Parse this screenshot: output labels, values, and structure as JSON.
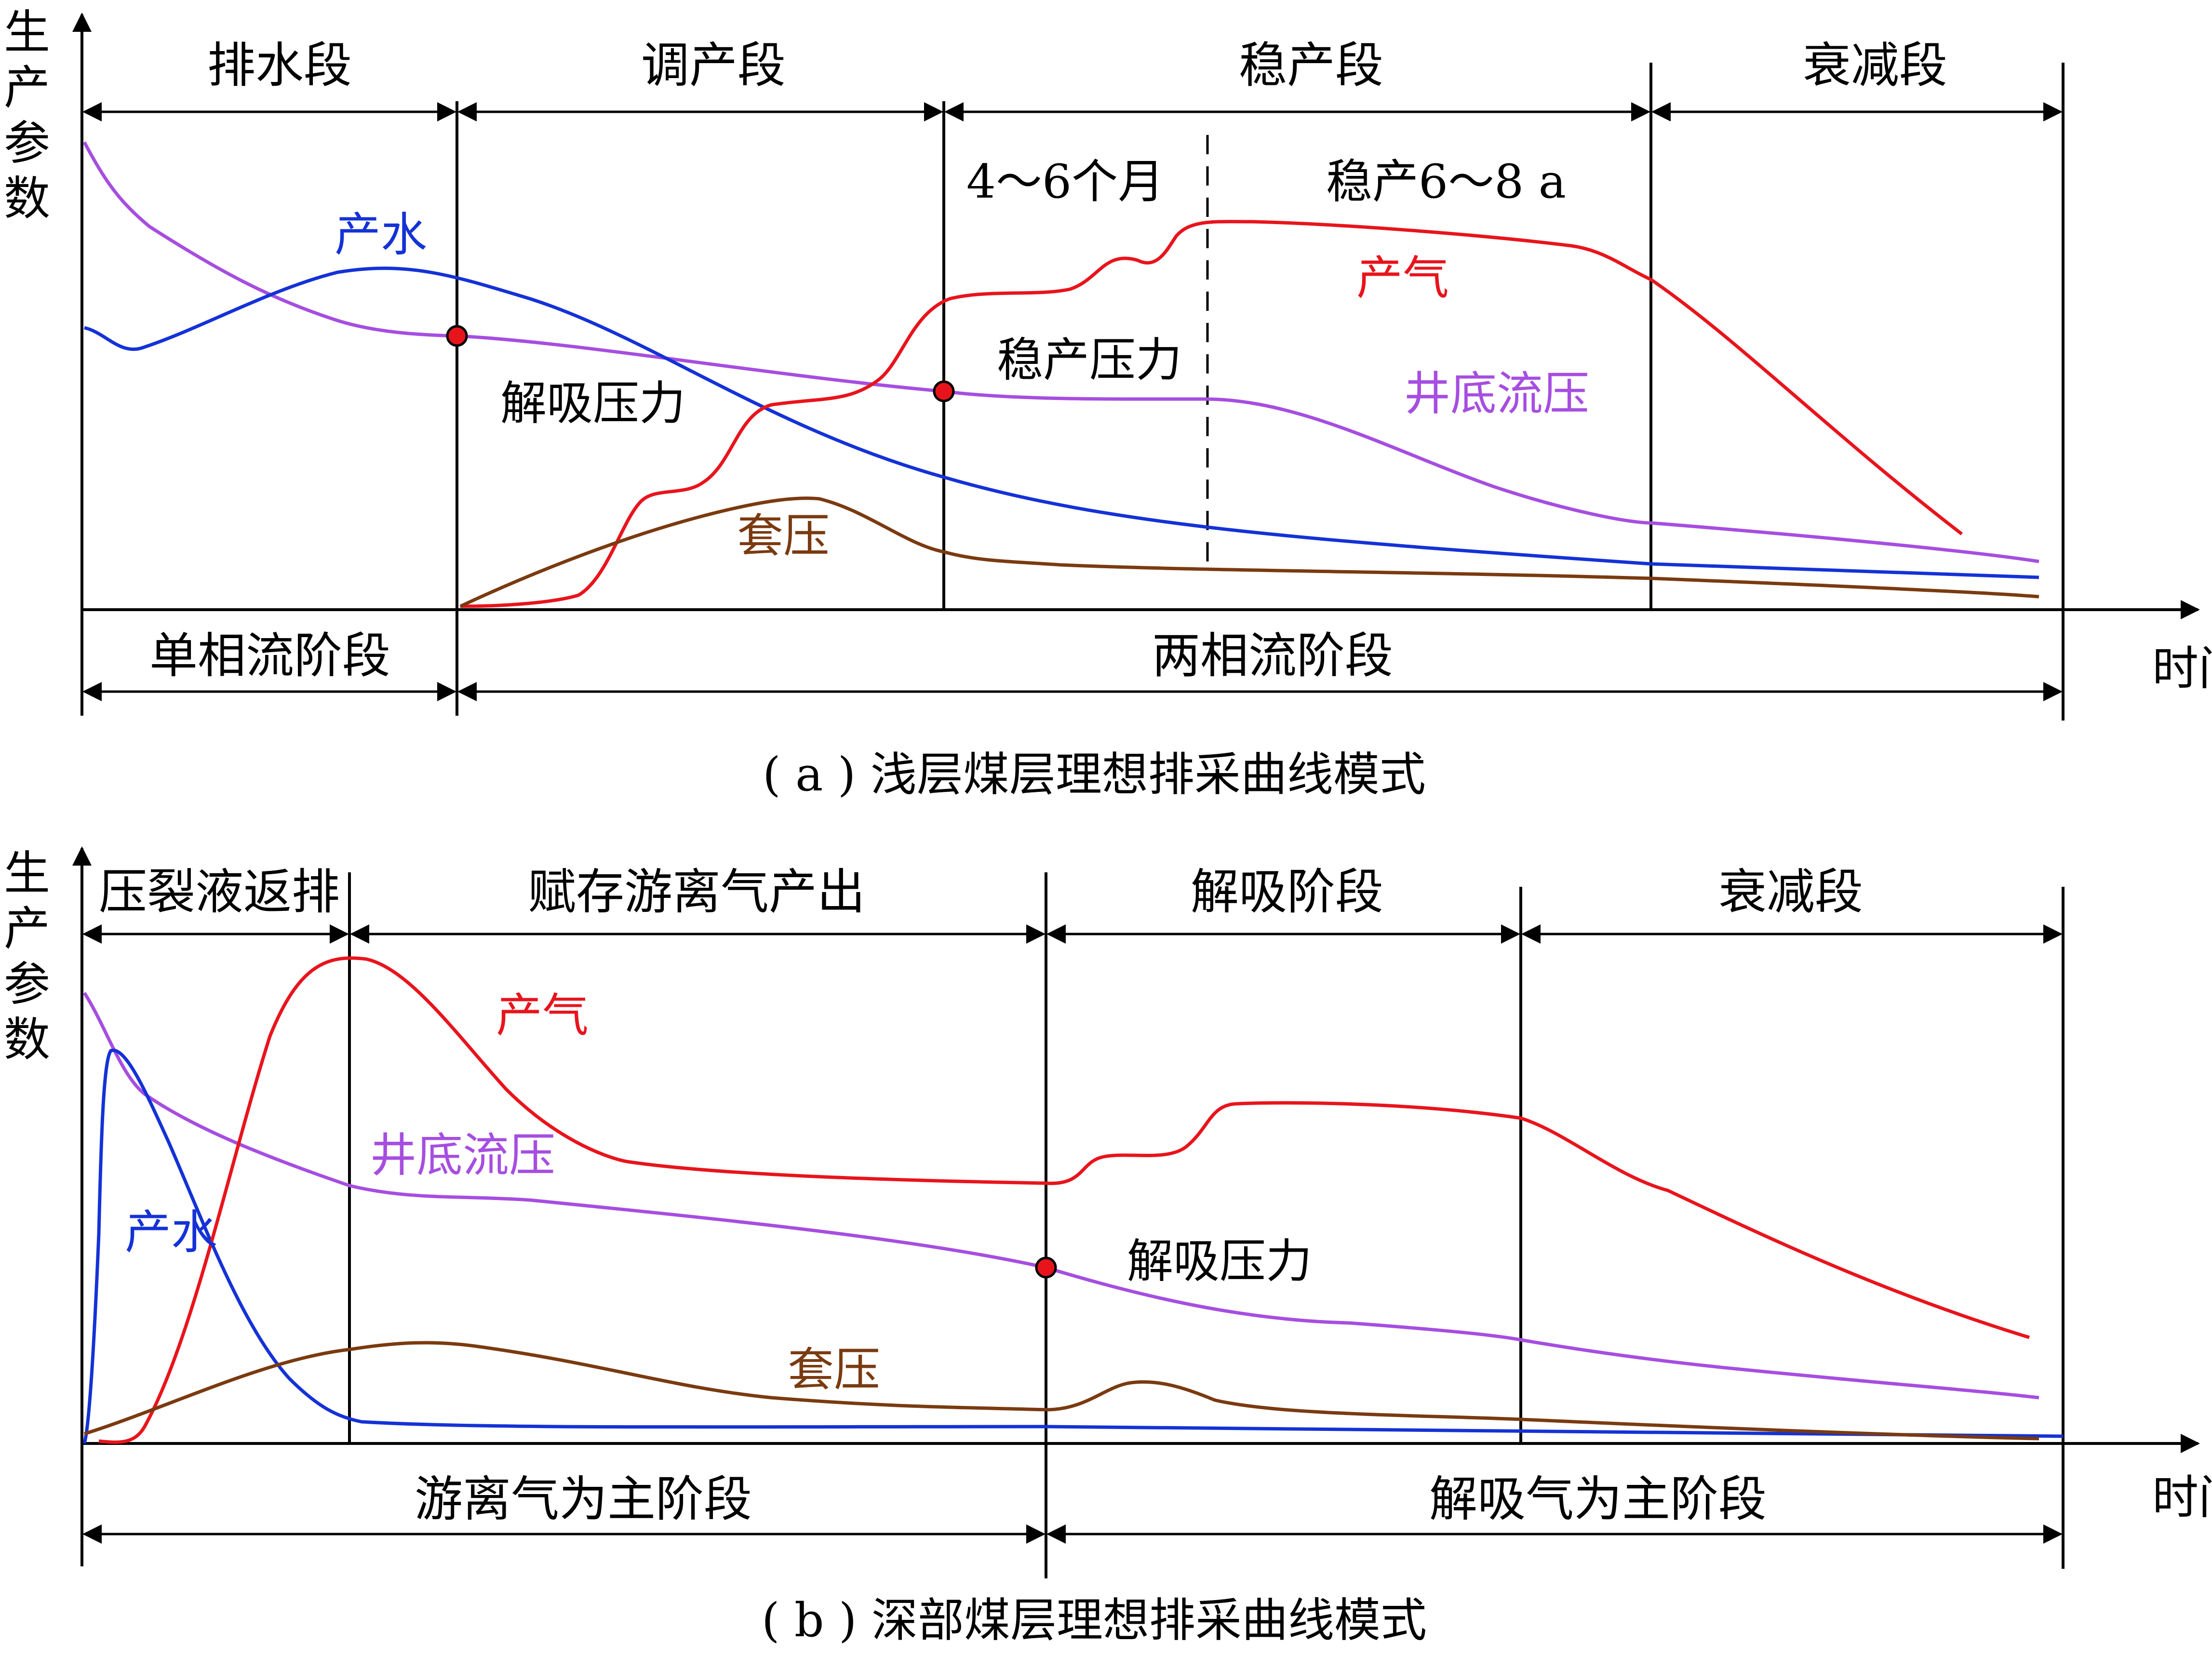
{
  "colors": {
    "axis": "#000000",
    "gas": "#e8141c",
    "water": "#1432d6",
    "bhp": "#a64ee0",
    "casing": "#7a3a10",
    "marker": "#e8141c"
  },
  "panel_a": {
    "y_axis_label": "生产参数",
    "x_axis_label": "时间",
    "caption": "( a ) 浅层煤层理想排采曲线模式",
    "stages": [
      "排水段",
      "调产段",
      "稳产段",
      "衰减段"
    ],
    "sub_periods": [
      "4～6个月",
      "稳产6～8 a"
    ],
    "flow_phases": [
      "单相流阶段",
      "两相流阶段"
    ],
    "curve_labels": {
      "water": "产水",
      "gas": "产气",
      "bhp": "井底流压",
      "casing": "套压"
    },
    "points": {
      "desorption": "解吸压力",
      "stable": "稳产压力"
    }
  },
  "panel_b": {
    "y_axis_label": "生产参数",
    "x_axis_label": "时间",
    "caption": "( b ) 深部煤层理想排采曲线模式",
    "stages": [
      "压裂液返排",
      "赋存游离气产出",
      "解吸阶段",
      "衰减段"
    ],
    "flow_phases": [
      "游离气为主阶段",
      "解吸气为主阶段"
    ],
    "curve_labels": {
      "gas": "产气",
      "water": "产水",
      "bhp": "井底流压",
      "casing": "套压"
    },
    "points": {
      "desorption": "解吸压力"
    }
  }
}
